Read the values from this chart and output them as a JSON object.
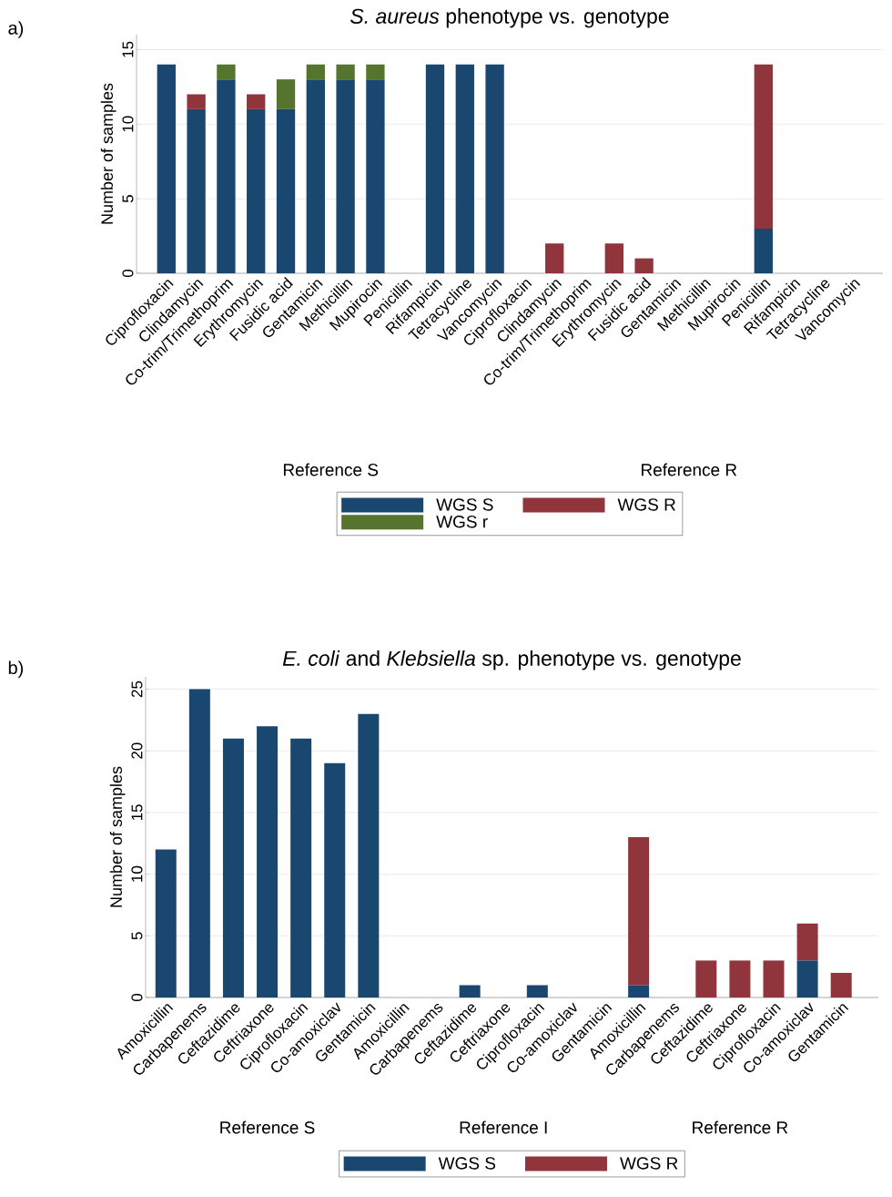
{
  "chart_data": [
    {
      "type": "bar",
      "title": "*S. aureus* phenotype vs. genotype",
      "ylabel": "Number of samples",
      "stacked": true,
      "grid": "y",
      "legend": "bottom",
      "annotations": [
        "a)",
        "Reference S",
        "Reference R"
      ],
      "categories": [
        "Ciprofloxacin",
        "Clindamycin",
        "Co-trim/Trimethoprim",
        "Erythromycin",
        "Fusidic acid",
        "Gentamicin",
        "Methicillin",
        "Mupirocin",
        "Penicillin",
        "Rifampicin",
        "Tetracycline",
        "Vancomycin",
        "Ciprofloxacin",
        "Clindamycin",
        "Co-trim/Trimethoprim",
        "Erythromycin",
        "Fusidic acid",
        "Gentamicin",
        "Methicillin",
        "Mupirocin",
        "Penicillin",
        "Rifampicin",
        "Tetracycline",
        "Vancomycin"
      ],
      "ylim": [
        0,
        16
      ],
      "yticks": [
        0,
        5,
        10,
        15
      ],
      "series": [
        {
          "name": "WGS S",
          "color": "#1a476f",
          "values": [
            14,
            11,
            13,
            11,
            11,
            13,
            13,
            13,
            0,
            14,
            14,
            14,
            0,
            0,
            0,
            0,
            0,
            0,
            0,
            0,
            3,
            0,
            0,
            0
          ]
        },
        {
          "name": "WGS R",
          "color": "#90353b",
          "values": [
            0,
            1,
            0,
            1,
            0,
            0,
            0,
            0,
            0,
            0,
            0,
            0,
            0,
            2,
            0,
            2,
            1,
            0,
            0,
            0,
            11,
            0,
            0,
            0
          ]
        },
        {
          "name": "WGS r",
          "color": "#55752f",
          "values": [
            0,
            0,
            1,
            0,
            2,
            1,
            1,
            1,
            0,
            0,
            0,
            0,
            0,
            0,
            0,
            0,
            0,
            0,
            0,
            0,
            0,
            0,
            0,
            0
          ]
        }
      ]
    },
    {
      "type": "bar",
      "title": "*E. coli* and *Klebsiella* sp. phenotype vs. genotype",
      "ylabel": "Number of samples",
      "stacked": true,
      "grid": "y",
      "legend": "bottom",
      "annotations": [
        "b)",
        "Reference S",
        "Reference I",
        "Reference R"
      ],
      "categories": [
        "Amoxicillin",
        "Carbapenems",
        "Ceftazidime",
        "Ceftriaxone",
        "Ciprofloxacin",
        "Co-amoxiclav",
        "Gentamicin",
        "Amoxicillin",
        "Carbapenems",
        "Ceftazidime",
        "Ceftriaxone",
        "Ciprofloxacin",
        "Co-amoxiclav",
        "Gentamicin",
        "Amoxicillin",
        "Carbapenems",
        "Ceftazidime",
        "Ceftriaxone",
        "Ciprofloxacin",
        "Co-amoxiclav",
        "Gentamicin"
      ],
      "ylim": [
        0,
        26
      ],
      "yticks": [
        0,
        5,
        10,
        15,
        20,
        25
      ],
      "series": [
        {
          "name": "WGS S",
          "color": "#1a476f",
          "values": [
            12,
            25,
            21,
            22,
            21,
            19,
            23,
            0,
            0,
            1,
            0,
            1,
            0,
            0,
            1,
            0,
            0,
            0,
            0,
            3,
            0
          ]
        },
        {
          "name": "WGS R",
          "color": "#90353b",
          "values": [
            0,
            0,
            0,
            0,
            0,
            0,
            0,
            0,
            0,
            0,
            0,
            0,
            0,
            0,
            12,
            0,
            3,
            3,
            3,
            3,
            2
          ]
        }
      ]
    }
  ]
}
